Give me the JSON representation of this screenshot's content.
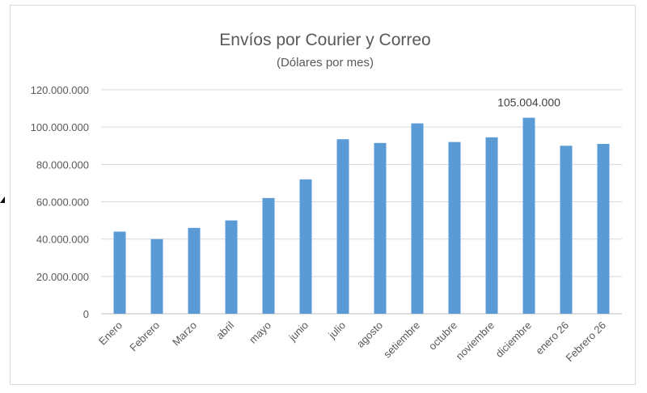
{
  "chart_data": {
    "type": "bar",
    "title": "Envíos por Courier y Correo",
    "subtitle": "(Dólares por mes)",
    "categories": [
      "Enero",
      "Febrero",
      "Marzo",
      "abril",
      "mayo",
      "junio",
      "julio",
      "agosto",
      "setiembre",
      "octubre",
      "noviembre",
      "diciembre",
      "enero 26",
      "Febrero 26"
    ],
    "values": [
      44000000,
      40000000,
      46000000,
      50000000,
      62000000,
      72000000,
      93500000,
      91500000,
      102000000,
      92000000,
      94500000,
      105004000,
      90000000,
      91000000
    ],
    "ylim": [
      0,
      120000000
    ],
    "yticks": [
      "0",
      "20.000.000",
      "40.000.000",
      "60.000.000",
      "80.000.000",
      "100.000.000",
      "120.000.000"
    ],
    "data_labels": [
      {
        "index": 11,
        "text": "105.004.000"
      }
    ],
    "grid": true,
    "legend": "none",
    "bar_color": "#5b9bd5"
  }
}
